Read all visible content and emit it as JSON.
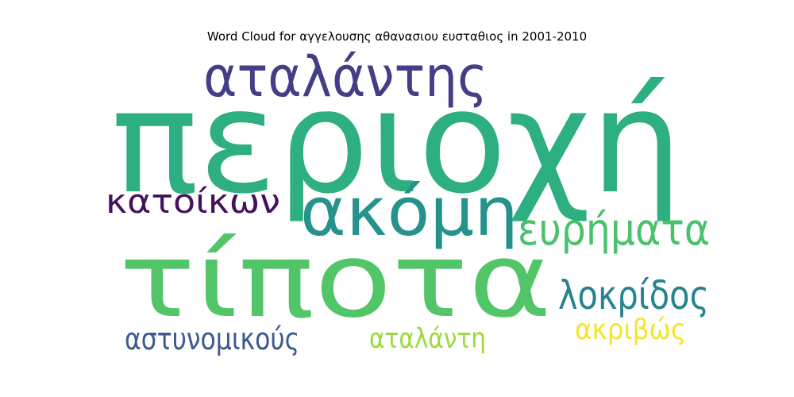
{
  "title": "Word Cloud for αγγελουσης αθανασιου ευσταθιος in 2001-2010",
  "words": [
    {
      "text": "περιοχή",
      "color": "#2eaf7f"
    },
    {
      "text": "τίποτα",
      "color": "#52c569"
    },
    {
      "text": "ακόμη",
      "color": "#25938b"
    },
    {
      "text": "αταλάντης",
      "color": "#433e85"
    },
    {
      "text": "κατοίκων",
      "color": "#46115c"
    },
    {
      "text": "ευρήματα",
      "color": "#4ac16d"
    },
    {
      "text": "λοκρίδος",
      "color": "#26838f"
    },
    {
      "text": "ακριβώς",
      "color": "#f3e52b"
    },
    {
      "text": "αστυνομικούς",
      "color": "#3b5a8e"
    },
    {
      "text": "αταλάντη",
      "color": "#9dd93b"
    }
  ]
}
